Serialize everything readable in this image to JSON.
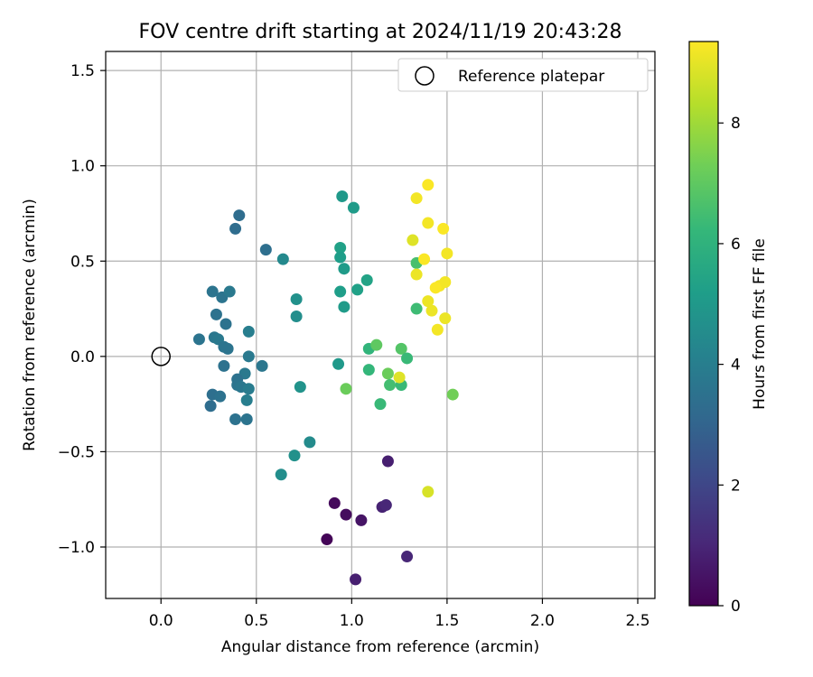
{
  "chart_data": {
    "type": "scatter",
    "title": "FOV centre drift starting at 2024/11/19 20:43:28",
    "xlabel": "Angular distance from reference (arcmin)",
    "ylabel": "Rotation from reference (arcmin)",
    "xlim": [
      -0.29,
      2.59
    ],
    "ylim": [
      -1.27,
      1.6
    ],
    "x_ticks": [
      {
        "value": 0.0,
        "label": "0.0"
      },
      {
        "value": 0.5,
        "label": "0.5"
      },
      {
        "value": 1.0,
        "label": "1.0"
      },
      {
        "value": 1.5,
        "label": "1.5"
      },
      {
        "value": 2.0,
        "label": "2.0"
      },
      {
        "value": 2.5,
        "label": "2.5"
      }
    ],
    "y_ticks": [
      {
        "value": -1.0,
        "label": "−1.0"
      },
      {
        "value": -0.5,
        "label": "−0.5"
      },
      {
        "value": 0.0,
        "label": "0.0"
      },
      {
        "value": 0.5,
        "label": "0.5"
      },
      {
        "value": 1.0,
        "label": "1.0"
      },
      {
        "value": 1.5,
        "label": "1.5"
      }
    ],
    "grid": true,
    "legend": {
      "position": "upper-right",
      "label": "Reference platepar"
    },
    "reference_point": {
      "x": 0.0,
      "y": 0.0
    },
    "colorbar": {
      "label": "Hours from first FF file",
      "min": 0,
      "max": 9.35,
      "ticks": [
        {
          "value": 0,
          "label": "0"
        },
        {
          "value": 2,
          "label": "2"
        },
        {
          "value": 4,
          "label": "4"
        },
        {
          "value": 6,
          "label": "6"
        },
        {
          "value": 8,
          "label": "8"
        }
      ],
      "colormap": "viridis",
      "stops": [
        "#440154",
        "#482878",
        "#3e4989",
        "#31688e",
        "#26828e",
        "#1f9e89",
        "#35b779",
        "#6ece58",
        "#b5de2b",
        "#fde725"
      ]
    },
    "points": [
      {
        "x": 0.87,
        "y": -0.96,
        "hours": 0.1
      },
      {
        "x": 0.91,
        "y": -0.77,
        "hours": 0.2
      },
      {
        "x": 0.97,
        "y": -0.83,
        "hours": 0.3
      },
      {
        "x": 1.05,
        "y": -0.86,
        "hours": 0.5
      },
      {
        "x": 1.02,
        "y": -1.17,
        "hours": 0.8
      },
      {
        "x": 1.16,
        "y": -0.79,
        "hours": 0.9
      },
      {
        "x": 1.18,
        "y": -0.78,
        "hours": 1.0
      },
      {
        "x": 1.19,
        "y": -0.55,
        "hours": 0.8
      },
      {
        "x": 1.29,
        "y": -1.05,
        "hours": 1.0
      },
      {
        "x": 0.41,
        "y": 0.74,
        "hours": 3.3
      },
      {
        "x": 0.39,
        "y": 0.67,
        "hours": 3.3
      },
      {
        "x": 0.55,
        "y": 0.56,
        "hours": 3.4
      },
      {
        "x": 0.27,
        "y": 0.34,
        "hours": 3.6
      },
      {
        "x": 0.32,
        "y": 0.31,
        "hours": 3.6
      },
      {
        "x": 0.36,
        "y": 0.34,
        "hours": 3.8
      },
      {
        "x": 0.29,
        "y": 0.22,
        "hours": 3.5
      },
      {
        "x": 0.34,
        "y": 0.17,
        "hours": 3.5
      },
      {
        "x": 0.2,
        "y": 0.09,
        "hours": 3.6
      },
      {
        "x": 0.28,
        "y": 0.1,
        "hours": 3.7
      },
      {
        "x": 0.3,
        "y": 0.09,
        "hours": 3.8
      },
      {
        "x": 0.33,
        "y": 0.05,
        "hours": 3.6
      },
      {
        "x": 0.35,
        "y": 0.04,
        "hours": 3.6
      },
      {
        "x": 0.46,
        "y": 0.13,
        "hours": 4.0
      },
      {
        "x": 0.46,
        "y": 0.0,
        "hours": 3.8
      },
      {
        "x": 0.33,
        "y": -0.05,
        "hours": 3.5
      },
      {
        "x": 0.53,
        "y": -0.05,
        "hours": 3.7
      },
      {
        "x": 0.44,
        "y": -0.09,
        "hours": 3.8
      },
      {
        "x": 0.4,
        "y": -0.12,
        "hours": 3.5
      },
      {
        "x": 0.4,
        "y": -0.15,
        "hours": 3.6
      },
      {
        "x": 0.42,
        "y": -0.16,
        "hours": 3.7
      },
      {
        "x": 0.46,
        "y": -0.17,
        "hours": 3.9
      },
      {
        "x": 0.27,
        "y": -0.2,
        "hours": 3.4
      },
      {
        "x": 0.31,
        "y": -0.21,
        "hours": 3.5
      },
      {
        "x": 0.45,
        "y": -0.23,
        "hours": 4.0
      },
      {
        "x": 0.26,
        "y": -0.26,
        "hours": 3.3
      },
      {
        "x": 0.39,
        "y": -0.33,
        "hours": 3.5
      },
      {
        "x": 0.45,
        "y": -0.33,
        "hours": 3.6
      },
      {
        "x": 0.64,
        "y": 0.51,
        "hours": 4.4
      },
      {
        "x": 0.71,
        "y": 0.3,
        "hours": 4.7
      },
      {
        "x": 0.71,
        "y": 0.21,
        "hours": 4.6
      },
      {
        "x": 0.73,
        "y": -0.16,
        "hours": 4.8
      },
      {
        "x": 0.78,
        "y": -0.45,
        "hours": 4.5
      },
      {
        "x": 0.7,
        "y": -0.52,
        "hours": 4.7
      },
      {
        "x": 0.63,
        "y": -0.62,
        "hours": 4.6
      },
      {
        "x": 0.95,
        "y": 0.84,
        "hours": 5.0
      },
      {
        "x": 1.01,
        "y": 0.78,
        "hours": 5.1
      },
      {
        "x": 0.94,
        "y": 0.57,
        "hours": 5.3
      },
      {
        "x": 0.94,
        "y": 0.52,
        "hours": 5.2
      },
      {
        "x": 0.96,
        "y": 0.46,
        "hours": 5.1
      },
      {
        "x": 1.08,
        "y": 0.4,
        "hours": 5.4
      },
      {
        "x": 0.94,
        "y": 0.34,
        "hours": 5.2
      },
      {
        "x": 1.03,
        "y": 0.35,
        "hours": 5.3
      },
      {
        "x": 0.96,
        "y": 0.26,
        "hours": 5.1
      },
      {
        "x": 0.93,
        "y": -0.04,
        "hours": 5.0
      },
      {
        "x": 1.09,
        "y": 0.04,
        "hours": 6.1
      },
      {
        "x": 1.09,
        "y": -0.07,
        "hours": 6.2
      },
      {
        "x": 1.13,
        "y": 0.06,
        "hours": 7.0
      },
      {
        "x": 1.19,
        "y": -0.09,
        "hours": 7.2
      },
      {
        "x": 1.2,
        "y": -0.15,
        "hours": 6.5
      },
      {
        "x": 1.26,
        "y": -0.15,
        "hours": 6.3
      },
      {
        "x": 1.26,
        "y": 0.04,
        "hours": 6.8
      },
      {
        "x": 1.29,
        "y": -0.01,
        "hours": 6.3
      },
      {
        "x": 1.15,
        "y": -0.25,
        "hours": 6.3
      },
      {
        "x": 0.97,
        "y": -0.17,
        "hours": 7.2
      },
      {
        "x": 1.53,
        "y": -0.2,
        "hours": 7.3
      },
      {
        "x": 1.34,
        "y": 0.49,
        "hours": 6.6
      },
      {
        "x": 1.34,
        "y": 0.25,
        "hours": 6.4
      },
      {
        "x": 1.4,
        "y": 0.9,
        "hours": 9.3
      },
      {
        "x": 1.34,
        "y": 0.83,
        "hours": 9.2
      },
      {
        "x": 1.4,
        "y": 0.7,
        "hours": 9.2
      },
      {
        "x": 1.48,
        "y": 0.67,
        "hours": 9.3
      },
      {
        "x": 1.32,
        "y": 0.61,
        "hours": 8.9
      },
      {
        "x": 1.5,
        "y": 0.54,
        "hours": 9.2
      },
      {
        "x": 1.38,
        "y": 0.51,
        "hours": 9.3
      },
      {
        "x": 1.34,
        "y": 0.43,
        "hours": 9.1
      },
      {
        "x": 1.49,
        "y": 0.39,
        "hours": 9.2
      },
      {
        "x": 1.46,
        "y": 0.37,
        "hours": 9.2
      },
      {
        "x": 1.44,
        "y": 0.36,
        "hours": 9.3
      },
      {
        "x": 1.4,
        "y": 0.29,
        "hours": 9.1
      },
      {
        "x": 1.42,
        "y": 0.24,
        "hours": 9.1
      },
      {
        "x": 1.49,
        "y": 0.2,
        "hours": 9.1
      },
      {
        "x": 1.45,
        "y": 0.14,
        "hours": 9.2
      },
      {
        "x": 1.25,
        "y": -0.11,
        "hours": 8.9
      },
      {
        "x": 1.4,
        "y": -0.71,
        "hours": 8.8
      }
    ]
  }
}
